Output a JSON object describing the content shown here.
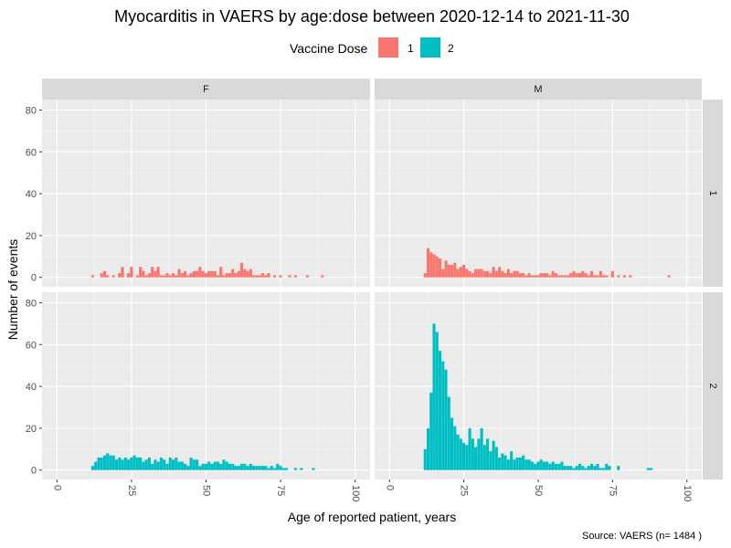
{
  "chart_data": {
    "type": "bar",
    "title": "Myocarditis in VAERS by age:dose between 2020-12-14 to 2021-11-30",
    "xlabel": "Age of reported patient, years",
    "ylabel": "Number of events",
    "caption": "Source: VAERS (n= 1484 )",
    "legend": {
      "title": "Vaccine Dose",
      "placement": "top",
      "entries": [
        {
          "label": "1",
          "color": "#F8766D"
        },
        {
          "label": "2",
          "color": "#00BFC4"
        }
      ]
    },
    "facet_cols": [
      "F",
      "M"
    ],
    "facet_rows": [
      "1",
      "2"
    ],
    "xlim": [
      -5,
      105
    ],
    "ylim": [
      -4.5,
      85
    ],
    "x_ticks": [
      "0",
      "25",
      "50",
      "75",
      "100"
    ],
    "y_ticks": [
      "0",
      "20",
      "40",
      "60",
      "80"
    ],
    "x_tick_values": [
      0,
      25,
      50,
      75,
      100
    ],
    "y_tick_values": [
      0,
      20,
      40,
      60,
      80
    ],
    "grid": true,
    "bar_width": 1,
    "panels": [
      {
        "sex": "F",
        "dose": "1",
        "color": "#F8766D",
        "x": [
          12,
          15,
          16,
          17,
          19,
          21,
          22,
          24,
          25,
          27,
          28,
          29,
          30,
          31,
          32,
          33,
          34,
          35,
          36,
          37,
          38,
          39,
          40,
          41,
          42,
          43,
          44,
          45,
          46,
          47,
          48,
          49,
          50,
          51,
          52,
          53,
          54,
          55,
          56,
          57,
          58,
          59,
          60,
          61,
          62,
          63,
          64,
          65,
          66,
          67,
          68,
          69,
          70,
          71,
          73,
          75,
          78,
          80,
          84,
          89
        ],
        "y": [
          1,
          2,
          3,
          1,
          1,
          2,
          5,
          2,
          5,
          1,
          5,
          3,
          1,
          2,
          5,
          3,
          5,
          1,
          1,
          2,
          1,
          2,
          1,
          4,
          2,
          3,
          1,
          2,
          3,
          3,
          5,
          3,
          2,
          3,
          3,
          3,
          1,
          5,
          1,
          2,
          2,
          4,
          2,
          3,
          7,
          4,
          3,
          4,
          1,
          1,
          1,
          2,
          1,
          2,
          1,
          1,
          1,
          1,
          1,
          1
        ]
      },
      {
        "sex": "M",
        "dose": "1",
        "color": "#F8766D",
        "x": [
          12,
          13,
          14,
          15,
          16,
          17,
          18,
          19,
          20,
          21,
          22,
          23,
          24,
          25,
          26,
          27,
          28,
          29,
          30,
          31,
          32,
          33,
          34,
          35,
          36,
          37,
          38,
          39,
          40,
          41,
          42,
          43,
          44,
          45,
          46,
          47,
          48,
          49,
          50,
          51,
          52,
          53,
          54,
          55,
          56,
          57,
          58,
          59,
          60,
          61,
          62,
          63,
          64,
          65,
          66,
          67,
          68,
          69,
          70,
          71,
          72,
          73,
          75,
          77,
          79,
          81,
          94
        ],
        "y": [
          2,
          14,
          12,
          11,
          10,
          9,
          4,
          8,
          6,
          6,
          7,
          4,
          5,
          6,
          4,
          3,
          2,
          4,
          4,
          4,
          3,
          3,
          2,
          5,
          3,
          5,
          3,
          2,
          4,
          2,
          3,
          3,
          2,
          2,
          1,
          2,
          1,
          1,
          1,
          2,
          2,
          2,
          1,
          3,
          2,
          1,
          1,
          1,
          1,
          2,
          3,
          2,
          2,
          3,
          2,
          1,
          3,
          1,
          1,
          3,
          1,
          1,
          3,
          1,
          1,
          1,
          1
        ]
      },
      {
        "sex": "F",
        "dose": "2",
        "color": "#00BFC4",
        "x": [
          12,
          13,
          14,
          15,
          16,
          17,
          18,
          19,
          20,
          21,
          22,
          23,
          24,
          25,
          26,
          27,
          28,
          29,
          30,
          31,
          32,
          33,
          34,
          35,
          36,
          37,
          38,
          39,
          40,
          41,
          42,
          43,
          44,
          45,
          46,
          47,
          48,
          49,
          50,
          51,
          52,
          53,
          54,
          55,
          56,
          57,
          58,
          59,
          60,
          61,
          62,
          63,
          64,
          65,
          66,
          67,
          68,
          69,
          70,
          71,
          72,
          73,
          74,
          75,
          76,
          77,
          80,
          82,
          86
        ],
        "y": [
          2,
          4,
          6,
          6,
          7,
          8,
          7,
          7,
          5,
          6,
          5,
          6,
          5,
          6,
          7,
          6,
          6,
          4,
          5,
          6,
          3,
          5,
          4,
          6,
          5,
          3,
          6,
          5,
          6,
          4,
          4,
          3,
          2,
          6,
          5,
          5,
          2,
          3,
          3,
          4,
          3,
          4,
          4,
          3,
          5,
          4,
          3,
          3,
          2,
          2,
          3,
          3,
          2,
          3,
          2,
          2,
          2,
          2,
          2,
          1,
          2,
          1,
          3,
          2,
          1,
          1,
          1,
          1,
          1
        ]
      },
      {
        "sex": "M",
        "dose": "2",
        "color": "#00BFC4",
        "x": [
          12,
          13,
          14,
          15,
          16,
          17,
          18,
          19,
          20,
          21,
          22,
          23,
          24,
          25,
          26,
          27,
          28,
          29,
          30,
          31,
          32,
          33,
          34,
          35,
          36,
          37,
          38,
          39,
          40,
          41,
          42,
          43,
          44,
          45,
          46,
          47,
          48,
          49,
          50,
          51,
          52,
          53,
          54,
          55,
          56,
          57,
          58,
          59,
          60,
          61,
          62,
          63,
          64,
          65,
          66,
          67,
          68,
          69,
          70,
          71,
          72,
          73,
          74,
          77,
          87,
          88
        ],
        "y": [
          10,
          20,
          37,
          70,
          66,
          57,
          52,
          48,
          35,
          25,
          21,
          17,
          15,
          13,
          12,
          20,
          15,
          11,
          15,
          20,
          12,
          15,
          9,
          14,
          11,
          6,
          8,
          7,
          5,
          9,
          5,
          6,
          6,
          7,
          5,
          5,
          4,
          3,
          4,
          5,
          4,
          4,
          3,
          4,
          3,
          3,
          4,
          2,
          2,
          2,
          1,
          2,
          3,
          2,
          1,
          2,
          3,
          2,
          3,
          1,
          1,
          3,
          2,
          2,
          1,
          1
        ]
      }
    ]
  }
}
